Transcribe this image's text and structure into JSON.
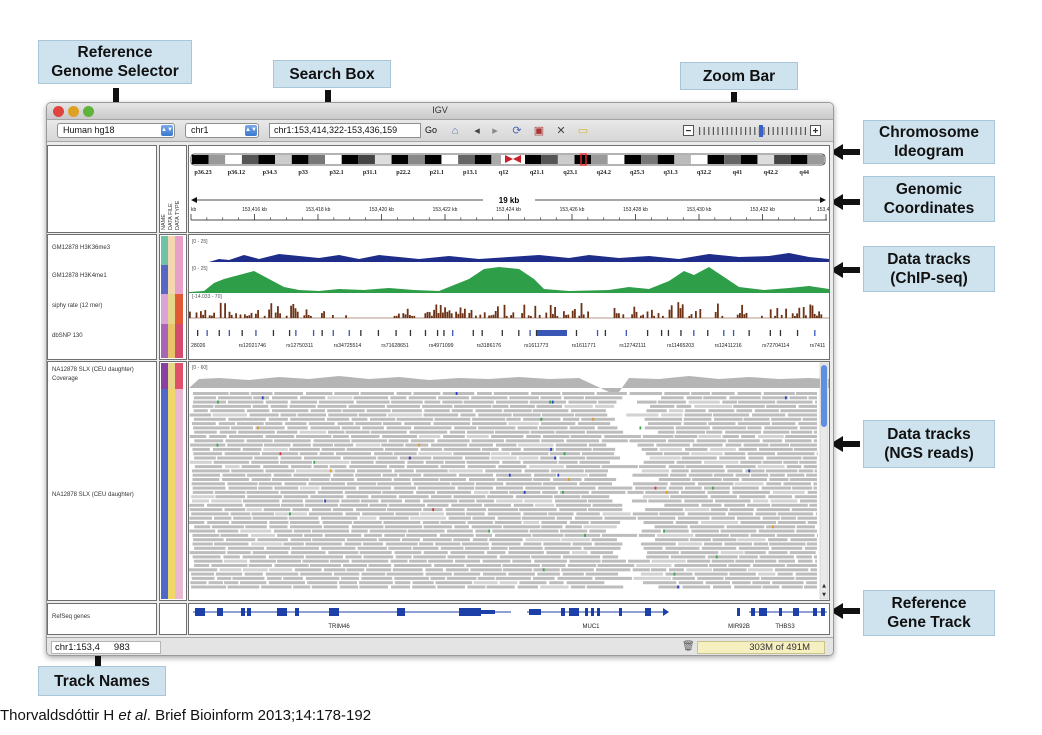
{
  "callouts": {
    "reference_genome_selector": {
      "line1": "Reference",
      "line2": "Genome Selector"
    },
    "search_box": "Search Box",
    "zoom_bar": "Zoom Bar",
    "chromosome_ideogram": {
      "line1": "Chromosome",
      "line2": "Ideogram"
    },
    "genomic_coordinates": {
      "line1": "Genomic",
      "line2": "Coordinates"
    },
    "data_tracks_chipseq": {
      "line1": "Data tracks",
      "line2": "(ChIP-seq)"
    },
    "data_tracks_ngs": {
      "line1": "Data tracks",
      "line2": "(NGS reads)"
    },
    "reference_gene_track": {
      "line1": "Reference",
      "line2": "Gene Track"
    },
    "track_names": "Track Names"
  },
  "igv": {
    "window_title": "IGV",
    "genome_dropdown": "Human hg18",
    "chromosome_dropdown": "chr1",
    "locus_value": "chr1:153,414,322-153,436,159",
    "go_label": "Go",
    "status_locus": "chr1:153,4",
    "status_locus_rest": "983",
    "memory": "303M of 491M",
    "ruler_span": "19 kb",
    "cytobands": [
      "p36.23",
      "p36.12",
      "p34.3",
      "p33",
      "p32.1",
      "p31.1",
      "p22.2",
      "p21.1",
      "p13.1",
      "q12",
      "q21.1",
      "q23.1",
      "q24.2",
      "q25.3",
      "q31.3",
      "q32.2",
      "q41",
      "q42.2",
      "q44"
    ],
    "ruler_ticks": [
      "kb",
      "153,416 kb",
      "153,418 kb",
      "153,420 kb",
      "153,422 kb",
      "153,424 kb",
      "153,426 kb",
      "153,428 kb",
      "153,430 kb",
      "153,432 kb",
      "153,434"
    ],
    "attribute_headers": [
      "NAME",
      "DATA FILE",
      "DATA TYPE"
    ],
    "tracks": {
      "chip1": {
        "name": "GM12878 H3K36me3",
        "range": "[0 - 25]"
      },
      "chip2": {
        "name": "GM12878 H3K4me1",
        "range": "[0 - 25]"
      },
      "siphy": {
        "name": "siphy rate (12 mer)",
        "range": "[-14.033 - 70]"
      },
      "dbsnp": {
        "name": "dbSNP 130"
      },
      "coverage": {
        "name": "NA12878 SLX (CEU daughter) Coverage",
        "range": "[0 - 60]"
      },
      "reads": {
        "name": "NA12878 SLX (CEU daughter)"
      },
      "refseq": {
        "name": "RefSeq genes"
      }
    },
    "snp_ids": [
      "28026",
      "rs12021746",
      "rs12750311",
      "rs34725514",
      "rs71628651",
      "rs4971099",
      "rs3186176",
      "rs1611773",
      "rs1611771",
      "rs12742111",
      "rs11465203",
      "rs12411216",
      "rs72704114",
      "rs7411"
    ],
    "genes": [
      "TRIM46",
      "MUC1",
      "MIR92B",
      "THBS3"
    ]
  },
  "citation": {
    "prefix": "Thorvaldsdóttir H ",
    "etal": "et al",
    "suffix": ". Brief Bioinform 2013;14:178-192"
  },
  "colors": {
    "callout_bg": "#cfe3ef",
    "chip_blue": "#1f2d8a",
    "chip_green": "#2e9e48",
    "siphy_brown": "#6e3316",
    "gene_blue": "#1c3fa8"
  }
}
